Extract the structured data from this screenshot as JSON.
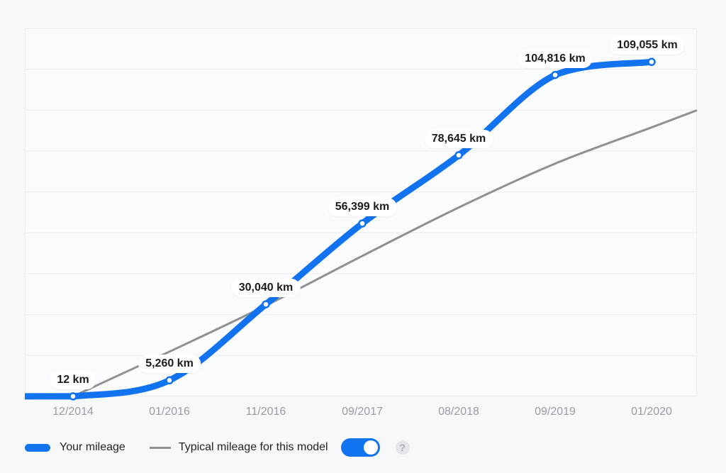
{
  "colors": {
    "accent": "#1173f0",
    "typical_line": "#8e9093",
    "grid": "#ececef",
    "plot_background": "#fafbfc",
    "page_background": "#f7f8f9",
    "tick_text": "#9a9ba1",
    "legend_text": "#232327",
    "point_label_text": "#1c1c21"
  },
  "chart_data": {
    "type": "line",
    "categories": [
      "12/2014",
      "01/2016",
      "11/2016",
      "09/2017",
      "08/2018",
      "09/2019",
      "01/2020"
    ],
    "series": [
      {
        "name": "Your mileage",
        "color": "#1173f0",
        "values": [
          12,
          5260,
          30040,
          56399,
          78645,
          104816,
          109055
        ],
        "point_labels": [
          "12 km",
          "5,260 km",
          "30,040 km",
          "56,399 km",
          "78,645 km",
          "104,816 km",
          "109,055 km"
        ],
        "starts_at_left_edge": true,
        "markers": true
      },
      {
        "name": "Typical mileage for this model",
        "color": "#8e9093",
        "values": [
          0,
          14600,
          29600,
          45800,
          61600,
          75900,
          87700
        ],
        "edge_value": 93300,
        "extends_to_right_edge": true,
        "markers": false
      }
    ],
    "ylim": [
      0,
      120000
    ],
    "grid": "horizontal",
    "grid_rows": 9,
    "xlabel": "",
    "ylabel": "",
    "title": "",
    "legend_position": "bottom-left"
  },
  "legend": {
    "toggle_state": "on",
    "help_glyph": "?"
  }
}
